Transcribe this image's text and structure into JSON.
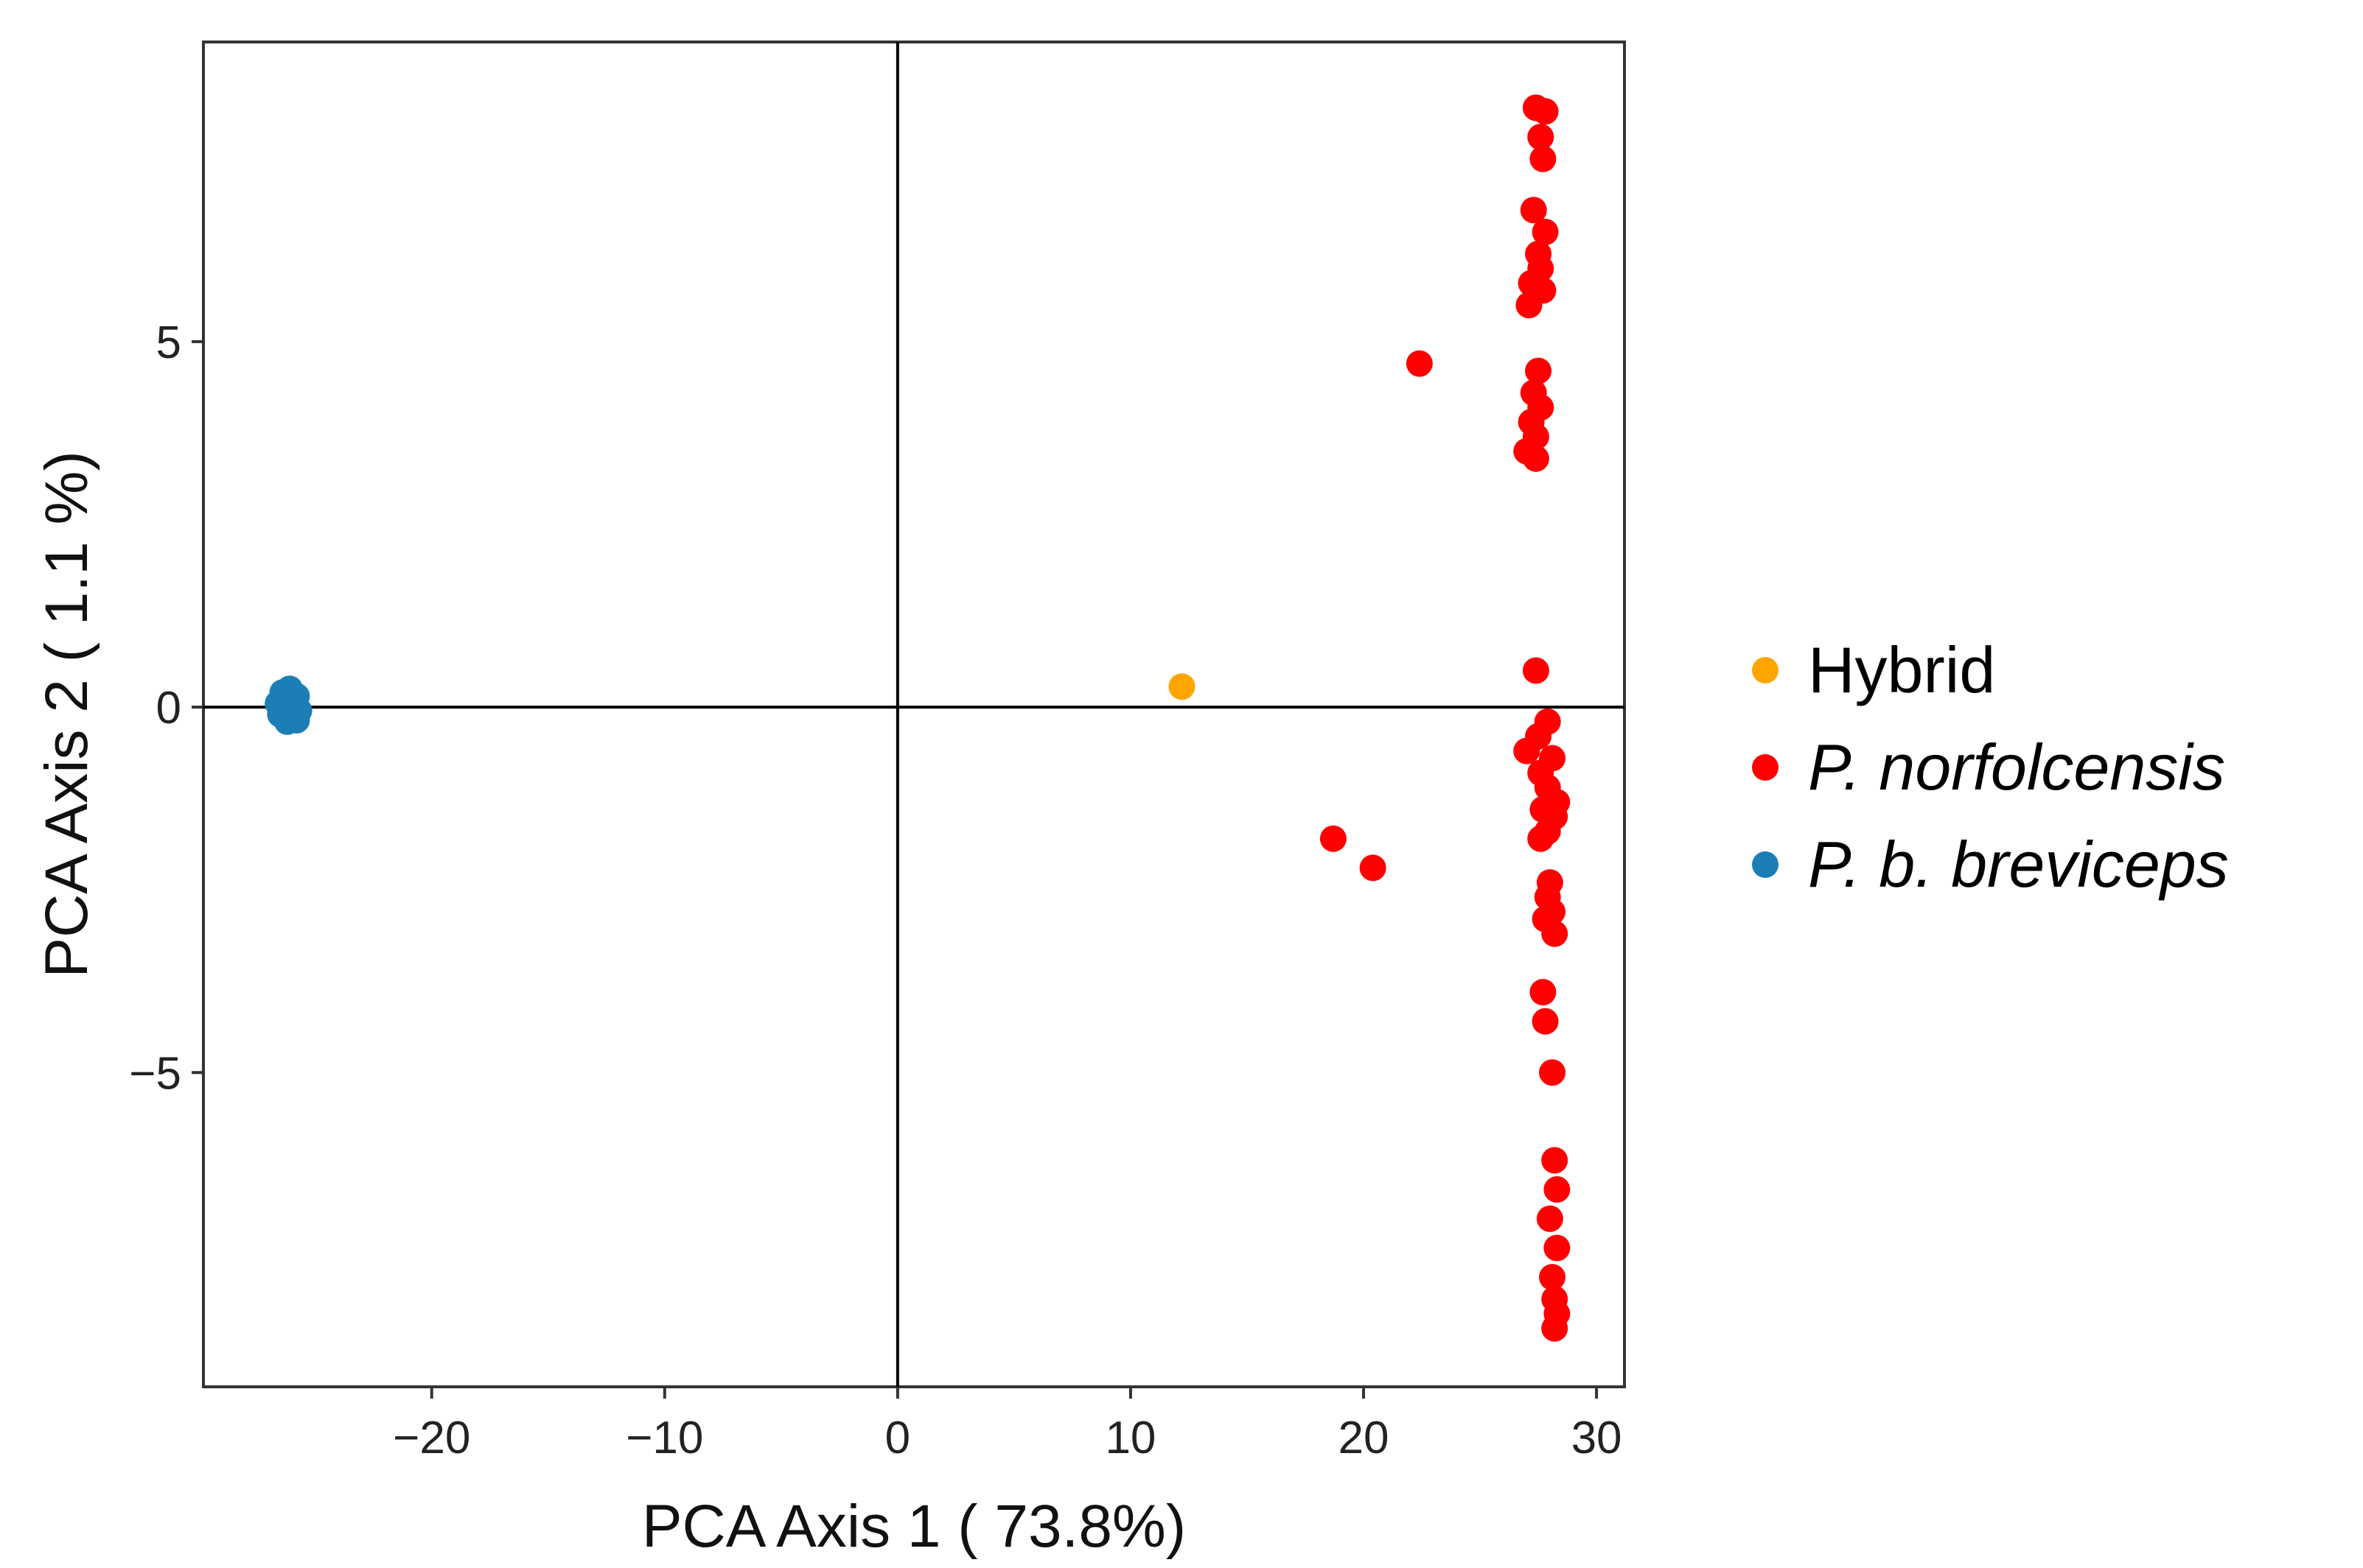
{
  "chart_data": {
    "type": "scatter",
    "title": "",
    "xlabel": "PCA Axis 1 ( 73.8%)",
    "ylabel": "PCA Axis 2 ( 1.1 %)",
    "xlim": [
      -29.8,
      31.2
    ],
    "ylim": [
      -9.3,
      9.1
    ],
    "xticks": [
      -20,
      -10,
      0,
      10,
      20,
      30
    ],
    "xtick_labels": [
      "−20",
      "−10",
      "0",
      "10",
      "20",
      "30"
    ],
    "yticks": [
      -5,
      0,
      5
    ],
    "ytick_labels": [
      "−5",
      "0",
      "5"
    ],
    "reference_lines": {
      "x": 0,
      "y": 0
    },
    "grid": false,
    "legend_position": "right",
    "series": [
      {
        "name": "Hybrid",
        "italic": false,
        "color": "#FFA500",
        "points": [
          [
            12.2,
            0.28
          ]
        ]
      },
      {
        "name": "P. norfolcensis",
        "italic": true,
        "color": "#FF0000",
        "points": [
          [
            27.4,
            8.2
          ],
          [
            27.8,
            8.15
          ],
          [
            27.6,
            7.8
          ],
          [
            27.7,
            7.5
          ],
          [
            27.3,
            6.8
          ],
          [
            27.8,
            6.5
          ],
          [
            27.5,
            6.2
          ],
          [
            27.6,
            6.0
          ],
          [
            27.2,
            5.8
          ],
          [
            27.7,
            5.7
          ],
          [
            27.1,
            5.5
          ],
          [
            22.4,
            4.7
          ],
          [
            27.5,
            4.6
          ],
          [
            27.3,
            4.3
          ],
          [
            27.6,
            4.1
          ],
          [
            27.2,
            3.9
          ],
          [
            27.4,
            3.7
          ],
          [
            27.0,
            3.5
          ],
          [
            27.4,
            3.4
          ],
          [
            27.4,
            0.5
          ],
          [
            27.9,
            -0.2
          ],
          [
            27.5,
            -0.4
          ],
          [
            27.0,
            -0.6
          ],
          [
            28.1,
            -0.7
          ],
          [
            27.6,
            -0.9
          ],
          [
            27.9,
            -1.1
          ],
          [
            28.3,
            -1.3
          ],
          [
            27.7,
            -1.4
          ],
          [
            28.2,
            -1.5
          ],
          [
            27.9,
            -1.7
          ],
          [
            27.6,
            -1.8
          ],
          [
            18.7,
            -1.8
          ],
          [
            20.4,
            -2.2
          ],
          [
            28.0,
            -2.4
          ],
          [
            27.9,
            -2.6
          ],
          [
            28.1,
            -2.8
          ],
          [
            27.8,
            -2.9
          ],
          [
            28.2,
            -3.1
          ],
          [
            27.7,
            -3.9
          ],
          [
            27.8,
            -4.3
          ],
          [
            28.1,
            -5.0
          ],
          [
            28.2,
            -6.2
          ],
          [
            28.3,
            -6.6
          ],
          [
            28.0,
            -7.0
          ],
          [
            28.3,
            -7.4
          ],
          [
            28.1,
            -7.8
          ],
          [
            28.2,
            -8.1
          ],
          [
            28.3,
            -8.3
          ],
          [
            28.2,
            -8.5
          ]
        ]
      },
      {
        "name": "P. b. breviceps",
        "italic": true,
        "color": "#1B7FB5",
        "points": [
          [
            -26.4,
            0.2
          ],
          [
            -26.1,
            0.25
          ],
          [
            -25.8,
            0.15
          ],
          [
            -26.6,
            0.05
          ],
          [
            -26.3,
            0.0
          ],
          [
            -25.9,
            0.02
          ],
          [
            -26.5,
            -0.1
          ],
          [
            -26.0,
            -0.12
          ],
          [
            -25.7,
            -0.05
          ],
          [
            -26.2,
            -0.2
          ],
          [
            -25.8,
            -0.18
          ],
          [
            -26.4,
            0.1
          ]
        ]
      }
    ]
  }
}
